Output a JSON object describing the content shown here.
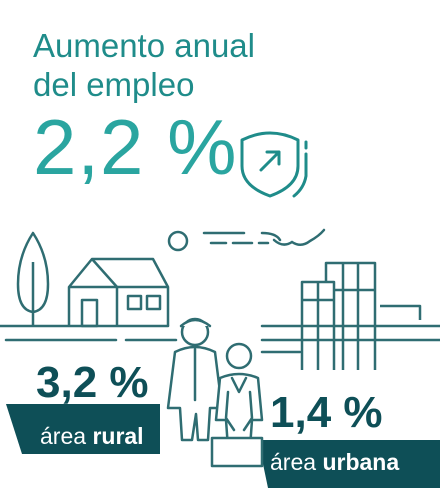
{
  "headline": {
    "line1": "Aumento anual",
    "line2": "del empleo",
    "value": "2,2 %"
  },
  "rural": {
    "value": "3,2 %",
    "label_prefix": "área",
    "label_bold": "rural"
  },
  "urban": {
    "value": "1,4 %",
    "label_prefix": "área",
    "label_bold": "urbana"
  },
  "icons": {
    "growth": "shield-arrow-icon",
    "tree": "tree-icon",
    "house": "house-icon",
    "buildings": "city-buildings-icon",
    "people": "people-icon",
    "sun": "sun-icon"
  },
  "colors": {
    "dark_teal": "#0e4f57",
    "teal": "#2aa5a0",
    "title_teal": "#1f8c8a",
    "line": "#2f6d72"
  }
}
